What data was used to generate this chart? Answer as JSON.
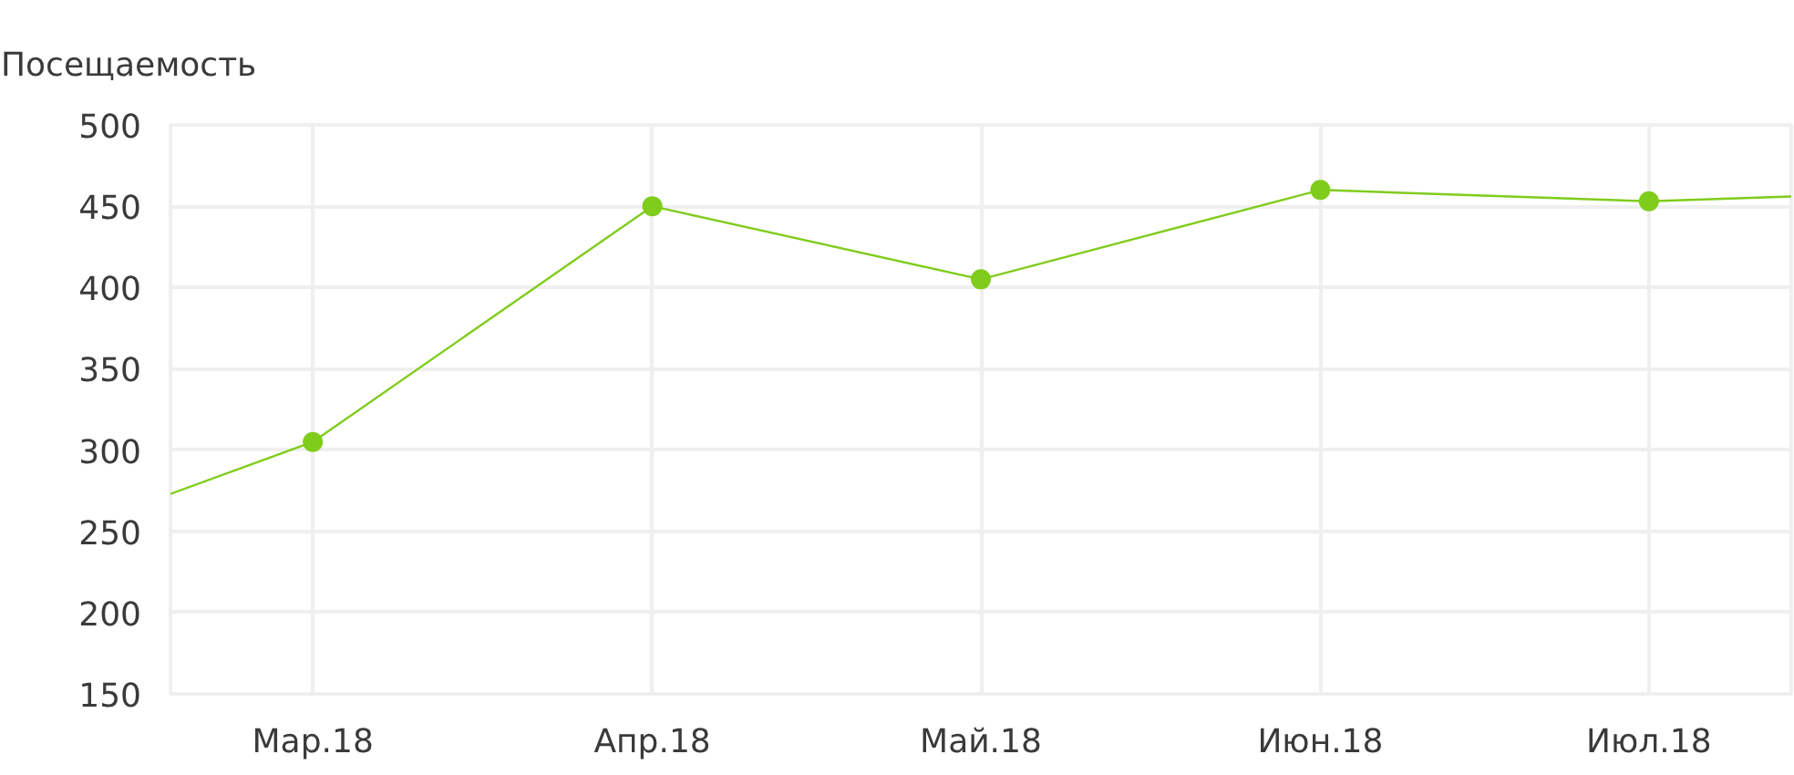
{
  "chart_data": {
    "type": "line",
    "title": "Посещаемость",
    "xlim": [
      "2018-02-16",
      "2018-07-14"
    ],
    "xticks": [
      {
        "value": "2018-03",
        "label": "Мар.18"
      },
      {
        "value": "2018-04",
        "label": "Апр.18"
      },
      {
        "value": "2018-05",
        "label": "Май.18"
      },
      {
        "value": "2018-06",
        "label": "Июн.18"
      },
      {
        "value": "2018-07",
        "label": "Июл.18"
      }
    ],
    "ylim": [
      150,
      500
    ],
    "yticks": [
      150,
      200,
      250,
      300,
      350,
      400,
      450,
      500
    ],
    "grid": true,
    "series": [
      {
        "color": "#80cc1c",
        "marker": "none",
        "x": [
          "2018-02-16",
          "2018-03",
          "2018-04",
          "2018-05",
          "2018-06",
          "2018-07",
          "2018-07-14"
        ],
        "values": [
          273,
          305,
          450,
          405,
          460,
          453,
          456
        ]
      },
      {
        "type": "scatter",
        "color": "#80cc1c",
        "marker": "circle",
        "x": [
          "2018-03",
          "2018-04",
          "2018-05",
          "2018-06",
          "2018-07"
        ],
        "values": [
          305,
          450,
          405,
          460,
          453
        ]
      }
    ]
  }
}
